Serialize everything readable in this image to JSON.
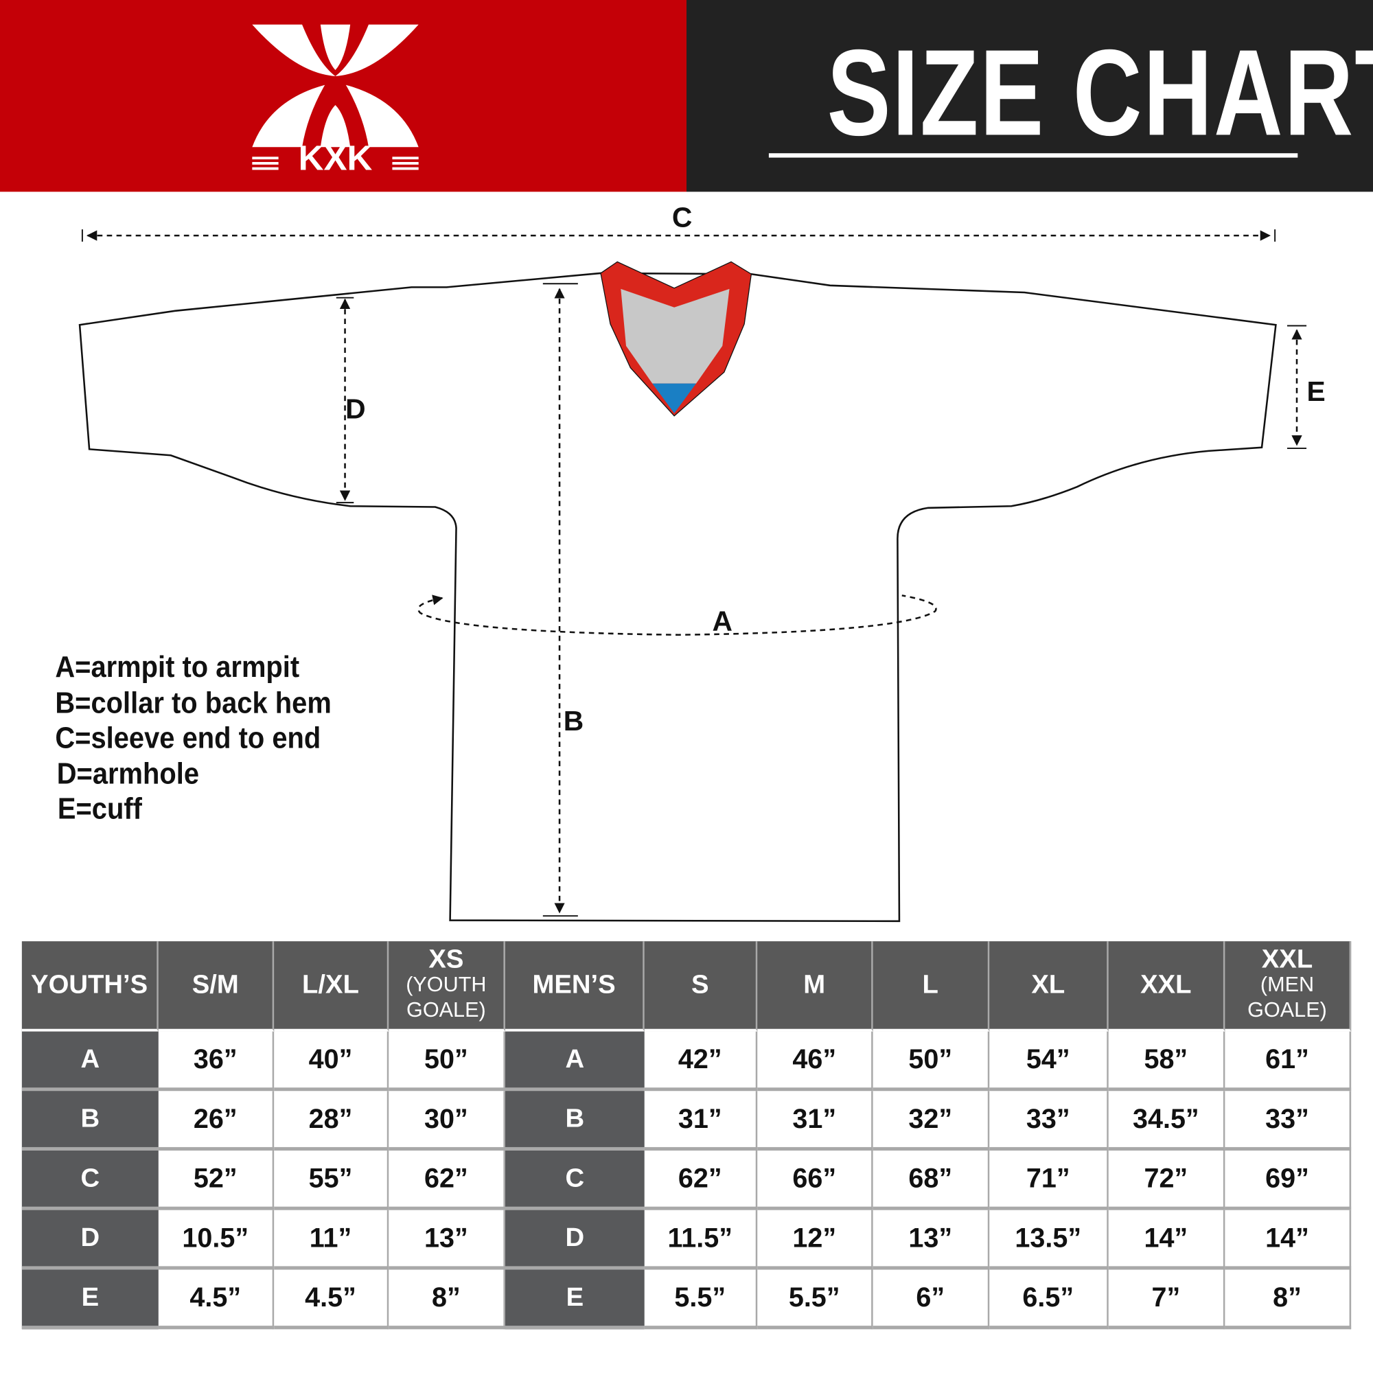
{
  "header": {
    "title": "SIZE CHART",
    "logo_text": "KXK",
    "colors": {
      "brand_red": "#c40007",
      "dark": "#222222"
    }
  },
  "diagram": {
    "labels": {
      "a": "A",
      "b": "B",
      "c": "C",
      "d": "D",
      "e": "E"
    },
    "colors": {
      "collar": "#d9261c",
      "collar_inner": "#c8c8c8",
      "collar_tip": "#1a7fc4"
    }
  },
  "legend": [
    "A=armpit to armpit",
    "B=collar to back hem",
    "C=sleeve end to end",
    "D=armhole",
    "E=cuff"
  ],
  "table": {
    "youth_header": "YOUTH’S",
    "youth_sizes": [
      {
        "main": "S/M",
        "sub": ""
      },
      {
        "main": "L/XL",
        "sub": ""
      },
      {
        "main": "XS",
        "sub": "(YOUTH GOALE)"
      }
    ],
    "men_header": "MEN’S",
    "men_sizes": [
      {
        "main": "S",
        "sub": ""
      },
      {
        "main": "M",
        "sub": ""
      },
      {
        "main": "L",
        "sub": ""
      },
      {
        "main": "XL",
        "sub": ""
      },
      {
        "main": "XXL",
        "sub": ""
      },
      {
        "main": "XXL",
        "sub": "(MEN GOALE)"
      }
    ],
    "rows": [
      {
        "label": "A",
        "youth": [
          "36”",
          "40”",
          "50”"
        ],
        "men": [
          "42”",
          "46”",
          "50”",
          "54”",
          "58”",
          "61”"
        ]
      },
      {
        "label": "B",
        "youth": [
          "26”",
          "28”",
          "30”"
        ],
        "men": [
          "31”",
          "31”",
          "32”",
          "33”",
          "34.5”",
          "33”"
        ]
      },
      {
        "label": "C",
        "youth": [
          "52”",
          "55”",
          "62”"
        ],
        "men": [
          "62”",
          "66”",
          "68”",
          "71”",
          "72”",
          "69”"
        ]
      },
      {
        "label": "D",
        "youth": [
          "10.5”",
          "11”",
          "13”"
        ],
        "men": [
          "11.5”",
          "12”",
          "13”",
          "13.5”",
          "14”",
          "14”"
        ]
      },
      {
        "label": "E",
        "youth": [
          "4.5”",
          "4.5”",
          "8”"
        ],
        "men": [
          "5.5”",
          "5.5”",
          "6”",
          "6.5”",
          "7”",
          "8”"
        ]
      }
    ]
  }
}
